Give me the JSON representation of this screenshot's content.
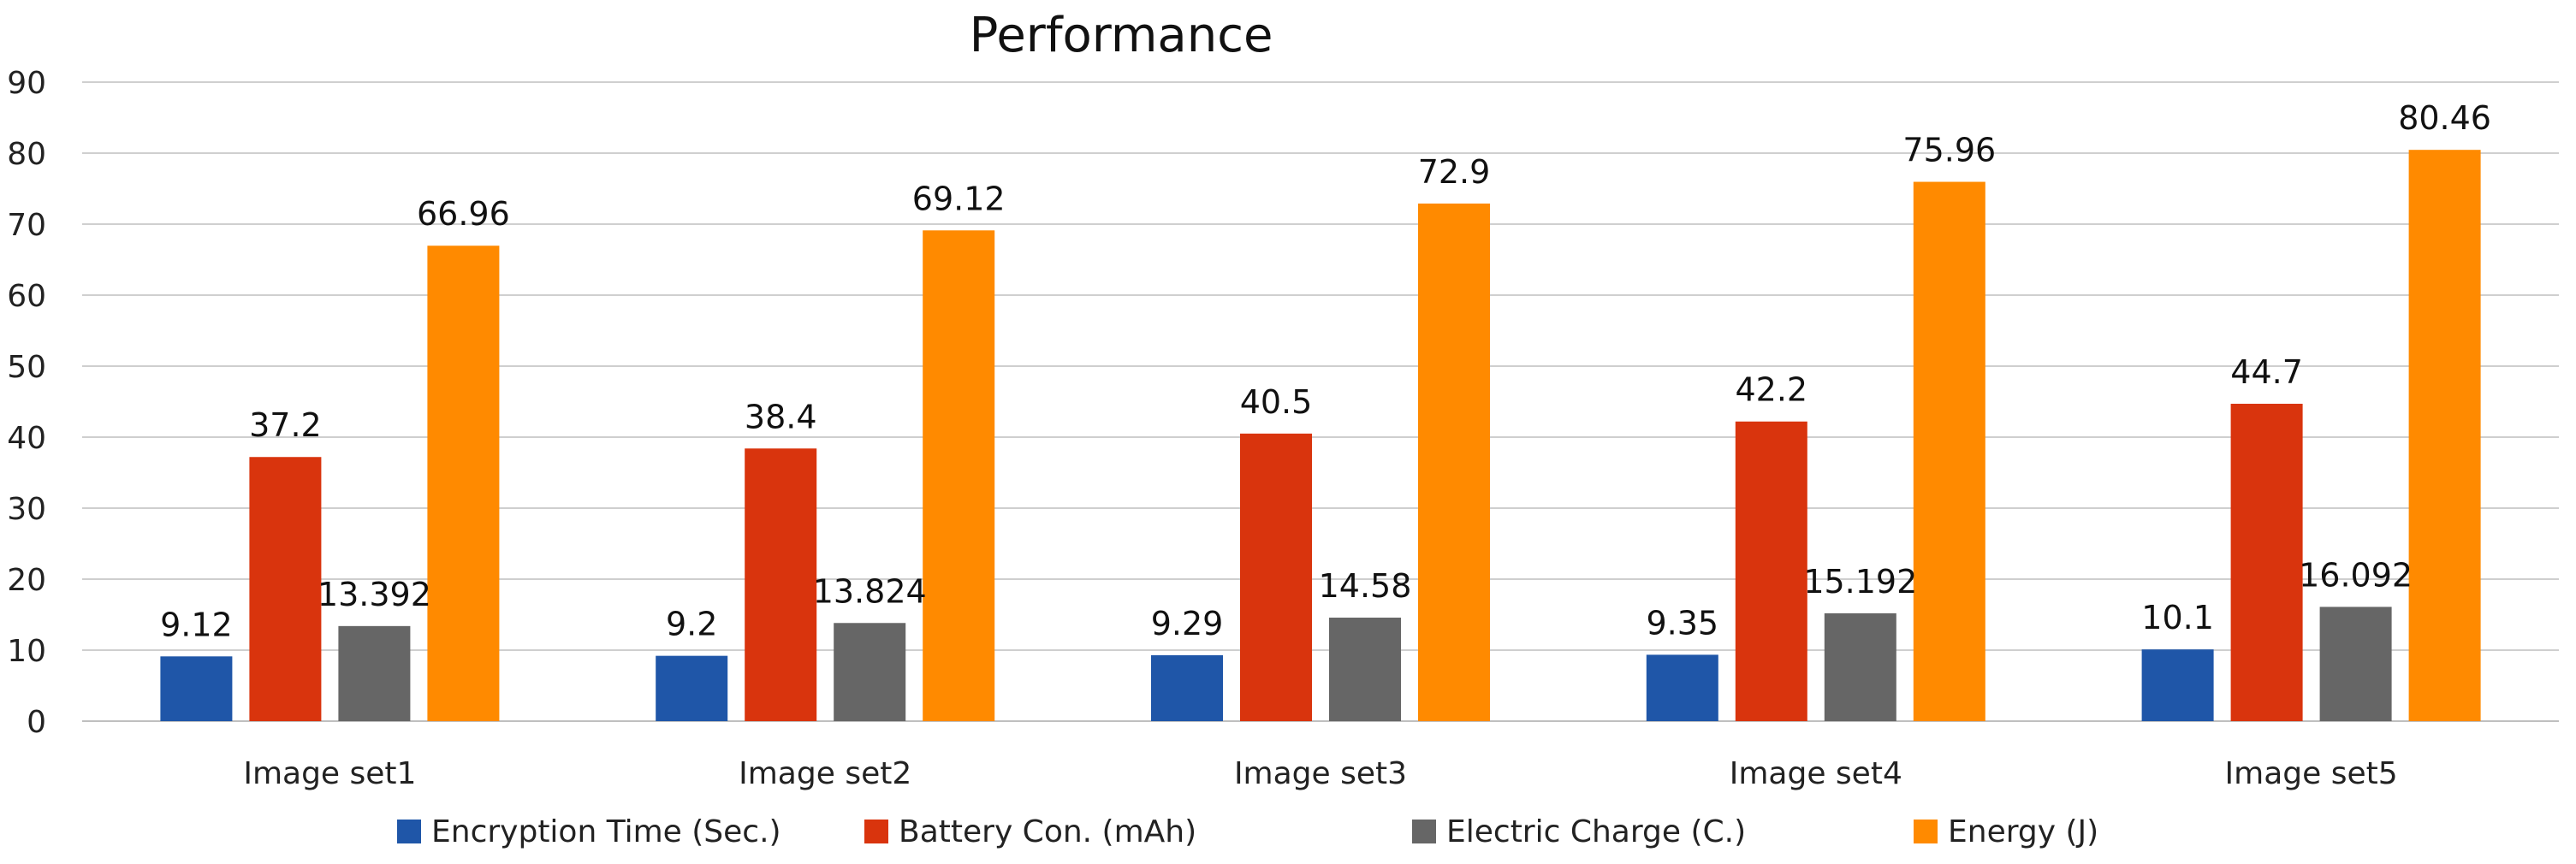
{
  "chart_data": {
    "type": "bar",
    "title": "Performance",
    "xlabel": "",
    "ylabel": "",
    "categories": [
      "Image set1",
      "Image set2",
      "Image set3",
      "Image set4",
      "Image set5"
    ],
    "series": [
      {
        "name": "Encryption Time (Sec.)",
        "label": "Encryption Time (Sec.)",
        "color": "#1f56a8",
        "values": [
          9.12,
          9.2,
          9.29,
          9.35,
          10.1
        ],
        "display": [
          "9.12",
          "9.2",
          "9.29",
          "9.35",
          "10.1"
        ]
      },
      {
        "name": "Battery Con. (mAh)",
        "label": "Battery Con. (mAh)",
        "color": "#d9340d",
        "values": [
          37.2,
          38.4,
          40.5,
          42.2,
          44.7
        ],
        "display": [
          "37.2",
          "38.4",
          "40.5",
          "42.2",
          "44.7"
        ]
      },
      {
        "name": "Electric Charge (C.)",
        "label": "Electric Charge (C.)",
        "color": "#666666",
        "values": [
          13.392,
          13.824,
          14.58,
          15.192,
          16.092
        ],
        "display": [
          "13.392",
          "13.824",
          "14.58",
          "15.192",
          "16.092"
        ]
      },
      {
        "name": "Energy (J)",
        "label": "Energy (J)",
        "color": "#ff8a00",
        "values": [
          66.96,
          69.12,
          72.9,
          75.96,
          80.46
        ],
        "display": [
          "66.96",
          "69.12",
          "72.9",
          "75.96",
          "80.46"
        ]
      }
    ],
    "ylim": [
      0,
      90
    ],
    "yticks": [
      "0",
      "10",
      "20",
      "30",
      "40",
      "50",
      "60",
      "70",
      "80",
      "90"
    ],
    "grid": true,
    "legend": "bottom"
  }
}
